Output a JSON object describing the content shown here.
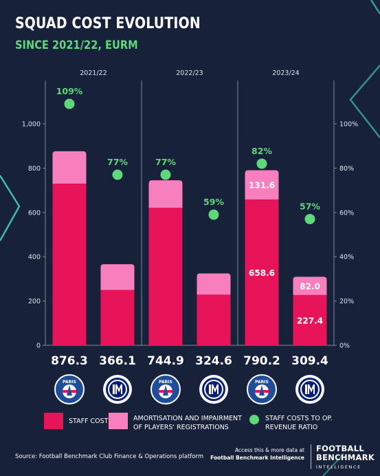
{
  "title": "SQUAD COST EVOLUTION",
  "subtitle": "SINCE 2021/22, EURM",
  "chart_data": {
    "type": "bar",
    "stacked": true,
    "seasons": [
      "2021/22",
      "2022/23",
      "2023/24"
    ],
    "categories": [
      "PSG 2021/22",
      "Inter 2021/22",
      "PSG 2022/23",
      "Inter 2022/23",
      "PSG 2023/24",
      "Inter 2023/24"
    ],
    "clubs": [
      "psg",
      "inter",
      "psg",
      "inter",
      "psg",
      "inter"
    ],
    "series": [
      {
        "name": "STAFF COSTS",
        "values": [
          730,
          250,
          621,
          229,
          658.6,
          227.4
        ],
        "color": "#e8145a"
      },
      {
        "name": "AMORTISATION AND IMPAIRMENT OF PLAYERS' REGISTRATIONS",
        "values": [
          146.3,
          116.1,
          123.9,
          95.6,
          131.6,
          82.0
        ],
        "color": "#f77fbe"
      }
    ],
    "totals": [
      "876.3",
      "366.1",
      "744.9",
      "324.6",
      "790.2",
      "309.4"
    ],
    "segment_labels": {
      "4": [
        "658.6",
        "131.6"
      ],
      "5": [
        "227.4",
        "82.0"
      ]
    },
    "ratio": {
      "name": "STAFF COSTS TO OP. REVENUE RATIO",
      "values": [
        109,
        77,
        77,
        59,
        82,
        57
      ],
      "labels": [
        "109%",
        "77%",
        "77%",
        "59%",
        "82%",
        "57%"
      ],
      "color": "#5ed87a",
      "axis_ticks": [
        "0%",
        "20%",
        "40%",
        "60%",
        "80%",
        "100%"
      ],
      "ylim": [
        0,
        100
      ]
    },
    "y_ticks": [
      "0",
      "200",
      "400",
      "600",
      "800",
      "1,000"
    ],
    "ylim": [
      0,
      1000
    ],
    "grid": false,
    "legend_position": "bottom"
  },
  "legend": {
    "staff": "STAFF COSTS",
    "amort_line1": "AMORTISATION AND IMPAIRMENT",
    "amort_line2": "OF PLAYERS' REGISTRATIONS",
    "ratio_line1": "STAFF COSTS TO OP.",
    "ratio_line2": "REVENUE RATIO"
  },
  "logos": {
    "psg_text": "PARIS",
    "psg_sub": "SAINT-GERMAIN"
  },
  "footer": {
    "source": "Source: Football Benchmark Club Finance & Operations platform",
    "access_line1": "Access this & more data at",
    "access_line2": "Football Benchmark Intelligence",
    "brand_line1": "FOOTBALL",
    "brand_line2": "BENCHMARK",
    "brand_line3": "INTELLIGENCE"
  },
  "colors": {
    "background": "#17213a",
    "staff": "#e8145a",
    "amortisation": "#f77fbe",
    "ratio": "#5ed87a",
    "psg_blue": "#1f4d9a",
    "inter_blue": "#0b1f72"
  }
}
